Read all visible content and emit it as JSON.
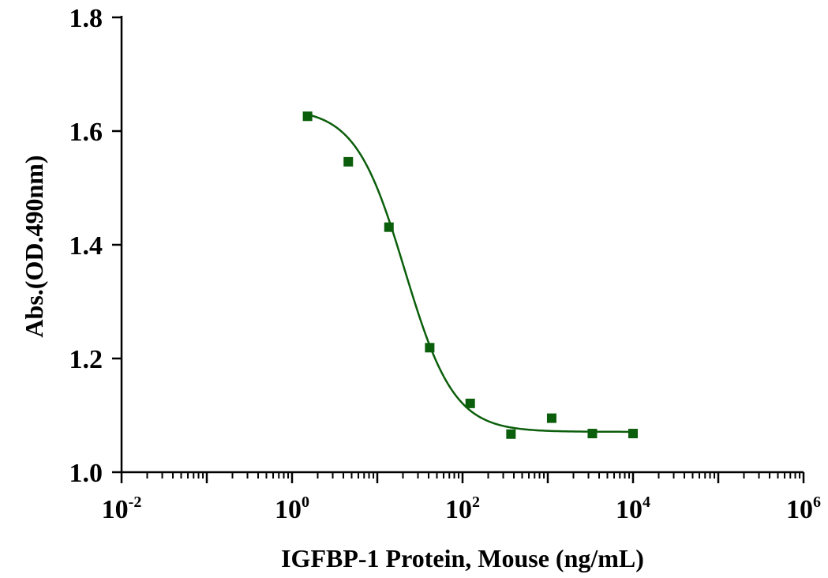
{
  "chart_data": {
    "type": "scatter",
    "title": "",
    "xlabel": "IGFBP-1 Protein, Mouse (ng/mL)",
    "ylabel": "Abs.(OD.490nm)",
    "x_scale": "log",
    "xlim": [
      0.01,
      1000000
    ],
    "ylim": [
      1.0,
      1.8
    ],
    "x_ticks": [
      {
        "base": "10",
        "exp": "-2",
        "value": 0.01
      },
      {
        "base": "10",
        "exp": "0",
        "value": 1
      },
      {
        "base": "10",
        "exp": "2",
        "value": 100
      },
      {
        "base": "10",
        "exp": "4",
        "value": 10000
      },
      {
        "base": "10",
        "exp": "6",
        "value": 1000000
      }
    ],
    "y_ticks": [
      "1.0",
      "1.2",
      "1.4",
      "1.6",
      "1.8"
    ],
    "grid": false,
    "legend": "none",
    "series": [
      {
        "marker_color": "#0b5e0b",
        "points": [
          {
            "x": 1.52,
            "y": 1.626
          },
          {
            "x": 4.57,
            "y": 1.546
          },
          {
            "x": 13.7,
            "y": 1.431
          },
          {
            "x": 41.2,
            "y": 1.219
          },
          {
            "x": 123,
            "y": 1.121
          },
          {
            "x": 370,
            "y": 1.067
          },
          {
            "x": 1111,
            "y": 1.095
          },
          {
            "x": 3333,
            "y": 1.068
          },
          {
            "x": 10000,
            "y": 1.068
          }
        ],
        "fit": {
          "model": "4PL",
          "top": 1.64,
          "bottom": 1.071,
          "ec50": 21,
          "hill": 1.5,
          "line_color": "#0b5e0b"
        }
      }
    ]
  }
}
